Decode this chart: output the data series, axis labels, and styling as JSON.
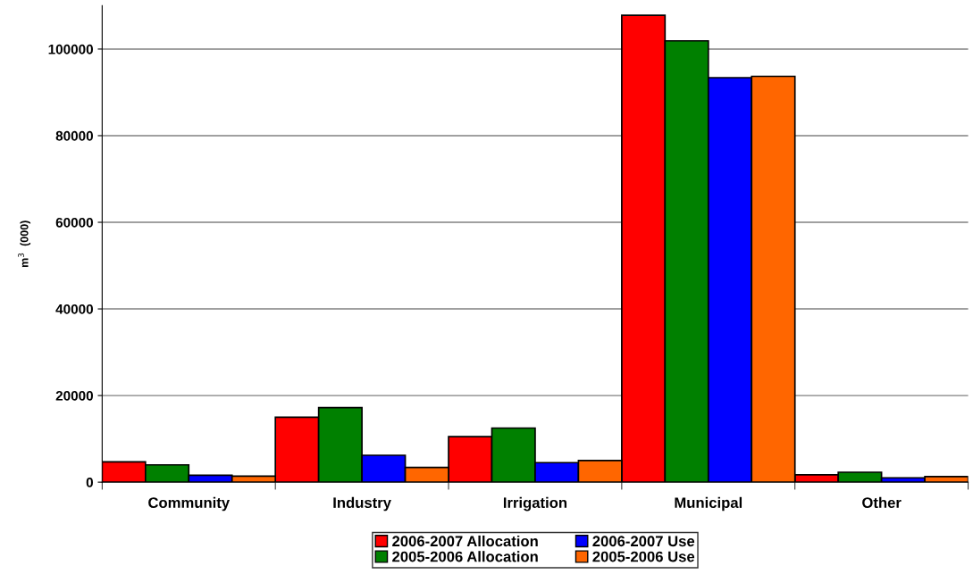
{
  "chart_data": {
    "type": "bar",
    "ylabel": "m$^{3}$  (000)",
    "categories": [
      "Community",
      "Industry",
      "Irrigation",
      "Municipal",
      "Other"
    ],
    "series": [
      {
        "name": "2006-2007 Allocation",
        "color": "#ff0000",
        "values": [
          4700,
          15000,
          10500,
          107800,
          1700
        ]
      },
      {
        "name": "2005-2006 Allocation",
        "color": "#008000",
        "values": [
          4000,
          17200,
          12500,
          101900,
          2300
        ]
      },
      {
        "name": "2006-2007 Use",
        "color": "#0000ff",
        "values": [
          1600,
          6200,
          4500,
          93400,
          1000
        ]
      },
      {
        "name": "2005-2006 Use",
        "color": "#ff6600",
        "values": [
          1400,
          3400,
          5000,
          93700,
          1300
        ]
      }
    ],
    "ylim": [
      0,
      110000
    ],
    "yticks": [
      0,
      20000,
      40000,
      60000,
      80000,
      100000
    ],
    "grid": "y",
    "legend": "bottom"
  }
}
